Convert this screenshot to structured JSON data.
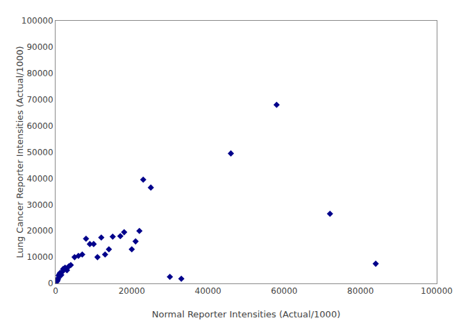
{
  "chart_data": {
    "type": "scatter",
    "x": [
      200,
      300,
      400,
      500,
      600,
      700,
      800,
      1000,
      1200,
      1500,
      1800,
      2000,
      2500,
      3000,
      3500,
      4000,
      5000,
      6000,
      7000,
      8000,
      9000,
      10000,
      11000,
      12000,
      13000,
      14000,
      15000,
      17000,
      18000,
      20000,
      21000,
      22000,
      23000,
      25000,
      30000,
      33000,
      46000,
      58000,
      72000,
      84000
    ],
    "values": [
      500,
      1000,
      800,
      1200,
      1500,
      2000,
      3000,
      3500,
      4000,
      3200,
      4500,
      5500,
      6000,
      5000,
      6500,
      7000,
      10000,
      10500,
      11000,
      17000,
      15000,
      15000,
      10000,
      17500,
      11000,
      13000,
      17800,
      18000,
      19500,
      13000,
      16000,
      20000,
      39500,
      36500,
      2500,
      1800,
      49500,
      68000,
      26500,
      7500
    ],
    "xlabel": "Normal Reporter Intensities (Actual/1000)",
    "ylabel": "Lung Cancer Reporter Intensities (Actual/1000)",
    "xlim": [
      0,
      100000
    ],
    "ylim": [
      0,
      100000
    ],
    "xticks": [
      0,
      20000,
      40000,
      60000,
      80000,
      100000
    ],
    "yticks": [
      0,
      10000,
      20000,
      30000,
      40000,
      50000,
      60000,
      70000,
      80000,
      90000,
      100000
    ],
    "color": "#00008B",
    "marker": "diamond",
    "grid": false
  }
}
